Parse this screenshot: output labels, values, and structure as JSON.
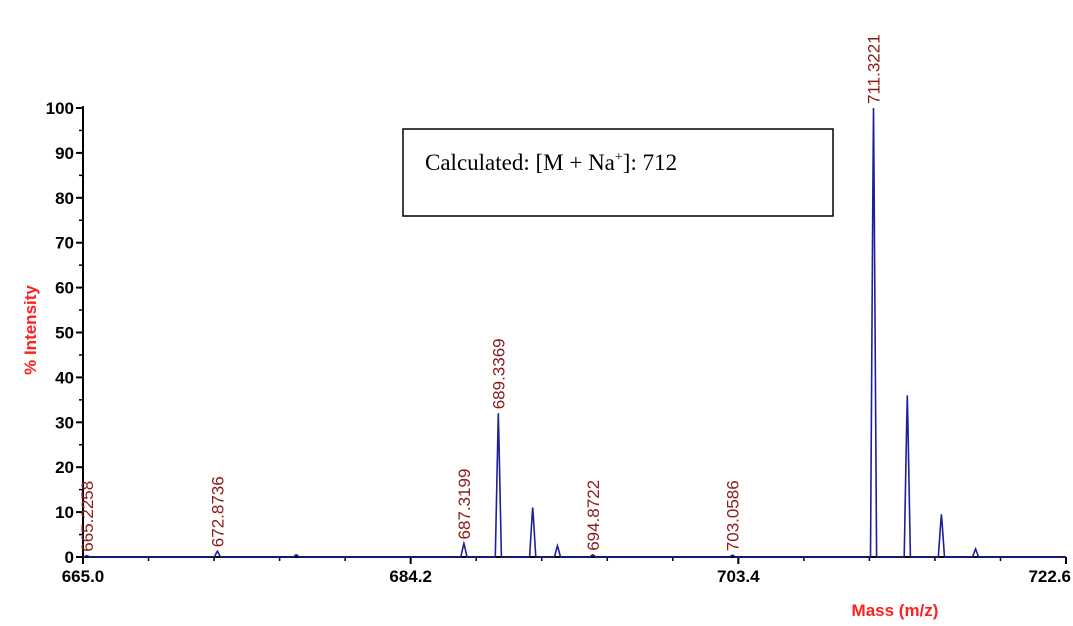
{
  "chart_data": {
    "type": "line",
    "xlabel": "Mass (m/z)",
    "ylabel": "% Intensity",
    "xlim": [
      665.0,
      722.6
    ],
    "ylim": [
      0,
      100
    ],
    "x_ticks": [
      665.0,
      684.2,
      703.4,
      722.6
    ],
    "x_tick_labels": [
      "665.0",
      "684.2",
      "703.4",
      "722.6"
    ],
    "y_ticks": [
      0,
      10,
      20,
      30,
      40,
      50,
      60,
      70,
      80,
      90,
      100
    ],
    "y_tick_labels": [
      "0",
      "10",
      "20",
      "30",
      "40",
      "50",
      "60",
      "70",
      "80",
      "90",
      "100"
    ],
    "grid": false,
    "line_color": "#1f1f9a",
    "peaks": [
      {
        "x": 665.2258,
        "y": 0.3
      },
      {
        "x": 672.8736,
        "y": 1.3
      },
      {
        "x": 677.5,
        "y": 0.5
      },
      {
        "x": 687.3199,
        "y": 3.0
      },
      {
        "x": 689.3369,
        "y": 32.0
      },
      {
        "x": 691.35,
        "y": 11.0
      },
      {
        "x": 692.8,
        "y": 2.5
      },
      {
        "x": 694.8722,
        "y": 0.5
      },
      {
        "x": 703.0586,
        "y": 0.4
      },
      {
        "x": 711.3221,
        "y": 100.0
      },
      {
        "x": 713.3,
        "y": 36.0
      },
      {
        "x": 715.3,
        "y": 9.5
      },
      {
        "x": 717.3,
        "y": 1.8
      }
    ],
    "peak_labels": [
      {
        "x": 665.2258,
        "text": "665.2258"
      },
      {
        "x": 672.8736,
        "text": "672.8736"
      },
      {
        "x": 687.3199,
        "text": "687.3199"
      },
      {
        "x": 689.3369,
        "text": "689.3369"
      },
      {
        "x": 694.8722,
        "text": "694.8722"
      },
      {
        "x": 703.0586,
        "text": "703.0586"
      },
      {
        "x": 711.3221,
        "text": "711.3221"
      }
    ],
    "annotation": {
      "prefix": "Calculated: [M + Na",
      "superscript": "+",
      "suffix": "]: 712"
    },
    "colors": {
      "axis_title": "#ff2020",
      "peak_label": "#8b1a1a",
      "spectrum": "#1f1f9a"
    }
  }
}
